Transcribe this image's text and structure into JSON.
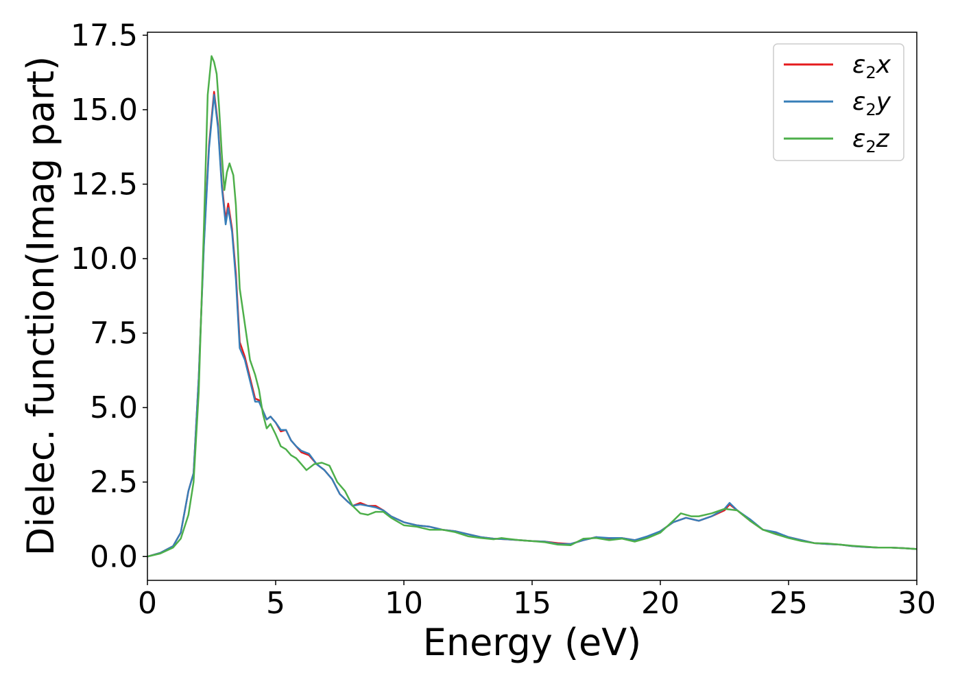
{
  "chart_data": {
    "type": "line",
    "xlabel": "Energy (eV)",
    "ylabel": "Dielec. function(Imag part)",
    "xlim": [
      0,
      30
    ],
    "ylim": [
      -0.8,
      17.6
    ],
    "x_ticks": [
      "0",
      "5",
      "10",
      "15",
      "20",
      "25",
      "30"
    ],
    "x_tick_values": [
      0,
      5,
      10,
      15,
      20,
      25,
      30
    ],
    "y_ticks": [
      "0.0",
      "2.5",
      "5.0",
      "7.5",
      "10.0",
      "12.5",
      "15.0",
      "17.5"
    ],
    "y_tick_values": [
      0,
      2.5,
      5,
      7.5,
      10,
      12.5,
      15,
      17.5
    ],
    "grid": false,
    "legend_position": "top-right",
    "series": [
      {
        "name": "ε2x",
        "legend_main": "ε",
        "legend_sub": "2",
        "legend_suffix": "x",
        "color": "#e41a1c",
        "points": [
          [
            0,
            0
          ],
          [
            0.5,
            0.12
          ],
          [
            1.0,
            0.35
          ],
          [
            1.3,
            0.8
          ],
          [
            1.6,
            2.2
          ],
          [
            1.8,
            2.8
          ],
          [
            2.0,
            6.0
          ],
          [
            2.2,
            10.5
          ],
          [
            2.4,
            13.8
          ],
          [
            2.6,
            15.6
          ],
          [
            2.75,
            14.5
          ],
          [
            2.9,
            12.5
          ],
          [
            3.05,
            11.3
          ],
          [
            3.15,
            11.85
          ],
          [
            3.3,
            11.0
          ],
          [
            3.45,
            9.5
          ],
          [
            3.6,
            7.2
          ],
          [
            3.8,
            6.7
          ],
          [
            4.0,
            6.0
          ],
          [
            4.2,
            5.3
          ],
          [
            4.35,
            5.25
          ],
          [
            4.5,
            4.9
          ],
          [
            4.65,
            4.6
          ],
          [
            4.8,
            4.7
          ],
          [
            5.0,
            4.5
          ],
          [
            5.2,
            4.2
          ],
          [
            5.4,
            4.25
          ],
          [
            5.6,
            3.9
          ],
          [
            5.8,
            3.7
          ],
          [
            6.0,
            3.5
          ],
          [
            6.3,
            3.4
          ],
          [
            6.6,
            3.1
          ],
          [
            6.9,
            2.9
          ],
          [
            7.2,
            2.6
          ],
          [
            7.5,
            2.1
          ],
          [
            7.8,
            1.85
          ],
          [
            8.0,
            1.7
          ],
          [
            8.3,
            1.8
          ],
          [
            8.6,
            1.7
          ],
          [
            8.9,
            1.7
          ],
          [
            9.2,
            1.55
          ],
          [
            9.5,
            1.35
          ],
          [
            10.0,
            1.15
          ],
          [
            10.5,
            1.05
          ],
          [
            11.0,
            1.0
          ],
          [
            11.5,
            0.9
          ],
          [
            12.0,
            0.85
          ],
          [
            12.5,
            0.75
          ],
          [
            13.0,
            0.65
          ],
          [
            13.5,
            0.6
          ],
          [
            14.0,
            0.58
          ],
          [
            14.5,
            0.55
          ],
          [
            15.0,
            0.52
          ],
          [
            15.5,
            0.5
          ],
          [
            16.0,
            0.45
          ],
          [
            16.5,
            0.42
          ],
          [
            17.0,
            0.55
          ],
          [
            17.5,
            0.65
          ],
          [
            18.0,
            0.6
          ],
          [
            18.5,
            0.62
          ],
          [
            19.0,
            0.55
          ],
          [
            19.5,
            0.65
          ],
          [
            20.0,
            0.85
          ],
          [
            20.5,
            1.15
          ],
          [
            21.0,
            1.3
          ],
          [
            21.5,
            1.2
          ],
          [
            22.0,
            1.35
          ],
          [
            22.5,
            1.55
          ],
          [
            22.7,
            1.75
          ],
          [
            23.0,
            1.55
          ],
          [
            23.5,
            1.2
          ],
          [
            24.0,
            0.9
          ],
          [
            24.5,
            0.8
          ],
          [
            25.0,
            0.65
          ],
          [
            25.5,
            0.55
          ],
          [
            26.0,
            0.45
          ],
          [
            26.5,
            0.42
          ],
          [
            27.0,
            0.4
          ],
          [
            27.5,
            0.35
          ],
          [
            28.0,
            0.32
          ],
          [
            28.5,
            0.3
          ],
          [
            29.0,
            0.3
          ],
          [
            29.5,
            0.28
          ],
          [
            30.0,
            0.25
          ]
        ]
      },
      {
        "name": "ε2y",
        "legend_main": "ε",
        "legend_sub": "2",
        "legend_suffix": "y",
        "color": "#377eb8",
        "points": [
          [
            0,
            0
          ],
          [
            0.5,
            0.12
          ],
          [
            1.0,
            0.35
          ],
          [
            1.3,
            0.8
          ],
          [
            1.6,
            2.2
          ],
          [
            1.8,
            2.8
          ],
          [
            2.0,
            6.0
          ],
          [
            2.2,
            10.4
          ],
          [
            2.4,
            13.7
          ],
          [
            2.6,
            15.5
          ],
          [
            2.75,
            14.4
          ],
          [
            2.9,
            12.4
          ],
          [
            3.05,
            11.15
          ],
          [
            3.15,
            11.7
          ],
          [
            3.3,
            10.9
          ],
          [
            3.45,
            9.3
          ],
          [
            3.6,
            7.0
          ],
          [
            3.8,
            6.6
          ],
          [
            4.0,
            5.9
          ],
          [
            4.2,
            5.2
          ],
          [
            4.35,
            5.2
          ],
          [
            4.5,
            4.9
          ],
          [
            4.65,
            4.6
          ],
          [
            4.8,
            4.7
          ],
          [
            5.0,
            4.5
          ],
          [
            5.2,
            4.25
          ],
          [
            5.4,
            4.25
          ],
          [
            5.6,
            3.9
          ],
          [
            5.8,
            3.7
          ],
          [
            6.0,
            3.55
          ],
          [
            6.3,
            3.45
          ],
          [
            6.6,
            3.1
          ],
          [
            6.9,
            2.9
          ],
          [
            7.2,
            2.6
          ],
          [
            7.5,
            2.1
          ],
          [
            7.8,
            1.85
          ],
          [
            8.0,
            1.7
          ],
          [
            8.3,
            1.75
          ],
          [
            8.6,
            1.7
          ],
          [
            8.9,
            1.65
          ],
          [
            9.2,
            1.55
          ],
          [
            9.5,
            1.35
          ],
          [
            10.0,
            1.15
          ],
          [
            10.5,
            1.05
          ],
          [
            11.0,
            1.0
          ],
          [
            11.5,
            0.9
          ],
          [
            12.0,
            0.85
          ],
          [
            12.5,
            0.75
          ],
          [
            13.0,
            0.65
          ],
          [
            13.5,
            0.6
          ],
          [
            14.0,
            0.58
          ],
          [
            14.5,
            0.55
          ],
          [
            15.0,
            0.52
          ],
          [
            15.5,
            0.5
          ],
          [
            16.0,
            0.42
          ],
          [
            16.5,
            0.42
          ],
          [
            17.0,
            0.55
          ],
          [
            17.5,
            0.65
          ],
          [
            18.0,
            0.62
          ],
          [
            18.5,
            0.62
          ],
          [
            19.0,
            0.55
          ],
          [
            19.5,
            0.68
          ],
          [
            20.0,
            0.85
          ],
          [
            20.5,
            1.15
          ],
          [
            21.0,
            1.3
          ],
          [
            21.5,
            1.2
          ],
          [
            22.0,
            1.35
          ],
          [
            22.5,
            1.6
          ],
          [
            22.7,
            1.8
          ],
          [
            23.0,
            1.55
          ],
          [
            23.5,
            1.25
          ],
          [
            24.0,
            0.9
          ],
          [
            24.5,
            0.82
          ],
          [
            25.0,
            0.65
          ],
          [
            25.5,
            0.55
          ],
          [
            26.0,
            0.45
          ],
          [
            26.5,
            0.42
          ],
          [
            27.0,
            0.4
          ],
          [
            27.5,
            0.35
          ],
          [
            28.0,
            0.32
          ],
          [
            28.5,
            0.3
          ],
          [
            29.0,
            0.3
          ],
          [
            29.5,
            0.28
          ],
          [
            30.0,
            0.25
          ]
        ]
      },
      {
        "name": "ε2z",
        "legend_main": "ε",
        "legend_sub": "2",
        "legend_suffix": "z",
        "color": "#4daf4a",
        "points": [
          [
            0,
            0
          ],
          [
            0.5,
            0.1
          ],
          [
            1.0,
            0.3
          ],
          [
            1.3,
            0.6
          ],
          [
            1.6,
            1.4
          ],
          [
            1.8,
            2.5
          ],
          [
            2.0,
            5.5
          ],
          [
            2.2,
            11.0
          ],
          [
            2.35,
            15.5
          ],
          [
            2.5,
            16.8
          ],
          [
            2.6,
            16.6
          ],
          [
            2.7,
            16.2
          ],
          [
            2.8,
            15.0
          ],
          [
            2.9,
            13.5
          ],
          [
            3.0,
            12.3
          ],
          [
            3.1,
            12.9
          ],
          [
            3.2,
            13.2
          ],
          [
            3.35,
            12.8
          ],
          [
            3.45,
            11.8
          ],
          [
            3.6,
            9.0
          ],
          [
            3.8,
            7.8
          ],
          [
            4.0,
            6.6
          ],
          [
            4.2,
            6.1
          ],
          [
            4.35,
            5.6
          ],
          [
            4.5,
            4.8
          ],
          [
            4.65,
            4.3
          ],
          [
            4.8,
            4.45
          ],
          [
            5.0,
            4.1
          ],
          [
            5.2,
            3.7
          ],
          [
            5.4,
            3.6
          ],
          [
            5.6,
            3.4
          ],
          [
            5.8,
            3.3
          ],
          [
            6.0,
            3.1
          ],
          [
            6.2,
            2.9
          ],
          [
            6.5,
            3.1
          ],
          [
            6.8,
            3.15
          ],
          [
            7.1,
            3.05
          ],
          [
            7.4,
            2.5
          ],
          [
            7.7,
            2.2
          ],
          [
            8.0,
            1.7
          ],
          [
            8.3,
            1.45
          ],
          [
            8.6,
            1.4
          ],
          [
            8.9,
            1.5
          ],
          [
            9.2,
            1.5
          ],
          [
            9.5,
            1.3
          ],
          [
            10.0,
            1.05
          ],
          [
            10.5,
            1.0
          ],
          [
            11.0,
            0.9
          ],
          [
            11.5,
            0.9
          ],
          [
            12.0,
            0.82
          ],
          [
            12.5,
            0.68
          ],
          [
            13.0,
            0.62
          ],
          [
            13.5,
            0.58
          ],
          [
            13.8,
            0.62
          ],
          [
            14.0,
            0.6
          ],
          [
            14.5,
            0.55
          ],
          [
            15.0,
            0.52
          ],
          [
            15.5,
            0.48
          ],
          [
            16.0,
            0.4
          ],
          [
            16.5,
            0.38
          ],
          [
            17.0,
            0.6
          ],
          [
            17.5,
            0.62
          ],
          [
            18.0,
            0.55
          ],
          [
            18.5,
            0.6
          ],
          [
            19.0,
            0.5
          ],
          [
            19.5,
            0.62
          ],
          [
            20.0,
            0.8
          ],
          [
            20.5,
            1.2
          ],
          [
            20.8,
            1.45
          ],
          [
            21.2,
            1.35
          ],
          [
            21.5,
            1.35
          ],
          [
            22.0,
            1.45
          ],
          [
            22.5,
            1.6
          ],
          [
            23.0,
            1.55
          ],
          [
            23.5,
            1.2
          ],
          [
            24.0,
            0.9
          ],
          [
            24.5,
            0.75
          ],
          [
            25.0,
            0.62
          ],
          [
            25.5,
            0.52
          ],
          [
            26.0,
            0.45
          ],
          [
            26.5,
            0.44
          ],
          [
            27.0,
            0.4
          ],
          [
            27.5,
            0.36
          ],
          [
            28.0,
            0.33
          ],
          [
            28.5,
            0.3
          ],
          [
            29.0,
            0.3
          ],
          [
            29.5,
            0.28
          ],
          [
            30.0,
            0.25
          ]
        ]
      }
    ]
  }
}
